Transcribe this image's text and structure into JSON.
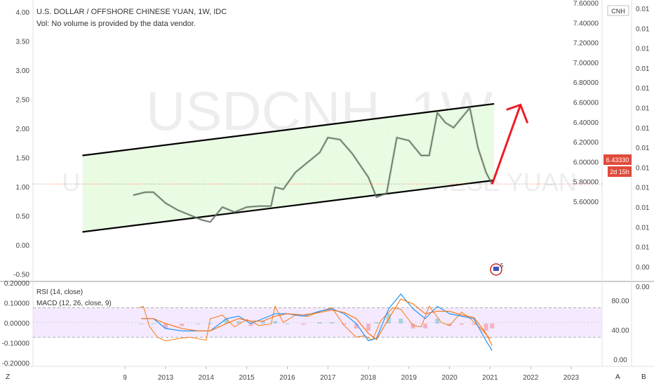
{
  "chart_data": {
    "type": "line",
    "title": "U.S. DOLLAR / OFFSHORE CHINESE YUAN, 1W, IDC",
    "volume_note": "Vol: No volume is provided by the data vendor.",
    "watermark_symbol": "USDCNH, 1W",
    "watermark_name": "U.S. DOLLAR / OFFSHORE CHINESE YUAN",
    "currency_badge": "CNH",
    "last_price": "6.43330",
    "countdown": "2d 15h",
    "event_badge": "5",
    "left_axis_ticks": [
      "4.00",
      "3.50",
      "3.00",
      "2.50",
      "2.00",
      "1.50",
      "1.00",
      "0.50",
      "0.00",
      "-0.50"
    ],
    "price_axis_ticks": [
      "7.60000",
      "7.40000",
      "7.20000",
      "7.00000",
      "6.80000",
      "6.60000",
      "6.40000",
      "6.20000",
      "6.00000",
      "5.80000",
      "5.60000"
    ],
    "far_right_ticks": [
      "0.01",
      "0.01",
      "0.01",
      "0.01",
      "0.01",
      "0.01",
      "0.01",
      "0.01",
      "0.01",
      "0.01",
      "0.01",
      "0.01",
      "0.01",
      "0.00",
      "0.00"
    ],
    "x_ticks": [
      "9",
      "2013",
      "2014",
      "2015",
      "2016",
      "2017",
      "2018",
      "2019",
      "2020",
      "2021",
      "2022",
      "2023"
    ],
    "price_series": {
      "x": [
        2012.2,
        2012.5,
        2012.7,
        2013.0,
        2013.3,
        2013.6,
        2013.9,
        2014.1,
        2014.4,
        2014.7,
        2015.0,
        2015.3,
        2015.6,
        2015.7,
        2015.9,
        2016.2,
        2016.5,
        2016.8,
        2017.0,
        2017.3,
        2017.6,
        2017.8,
        2018.0,
        2018.2,
        2018.45,
        2018.7,
        2019.0,
        2019.3,
        2019.5,
        2019.7,
        2019.9,
        2020.1,
        2020.3,
        2020.5,
        2020.7,
        2020.9,
        2021.05
      ],
      "y": [
        6.32,
        6.35,
        6.35,
        6.24,
        6.17,
        6.12,
        6.07,
        6.05,
        6.2,
        6.15,
        6.2,
        6.21,
        6.21,
        6.4,
        6.38,
        6.55,
        6.65,
        6.75,
        6.9,
        6.88,
        6.74,
        6.62,
        6.5,
        6.3,
        6.34,
        6.9,
        6.87,
        6.72,
        6.72,
        7.15,
        7.05,
        7.0,
        7.1,
        7.2,
        6.8,
        6.55,
        6.43
      ]
    },
    "channel_upper": {
      "x": [
        2010.95,
        2021.1
      ],
      "y": [
        6.72,
        7.24
      ]
    },
    "channel_lower": {
      "x": [
        2010.95,
        2021.1
      ],
      "y": [
        5.95,
        6.47
      ]
    },
    "projection_arrow": {
      "x": [
        2021.05,
        2021.75
      ],
      "y": [
        6.43,
        7.23
      ]
    },
    "indicators_label_1": "RSI (14, close)",
    "indicators_label_2": "MACD (12, 26, close, 9)",
    "macd_axis_ticks": [
      "0.20000",
      "0.10000",
      "0.00000",
      "-0.10000",
      "-0.20000"
    ],
    "rsi_axis_ticks": [
      "80.00",
      "40.00",
      "0.00"
    ],
    "rsi_series": {
      "x": [
        2012.35,
        2012.45,
        2012.6,
        2012.8,
        2013.0,
        2013.3,
        2013.6,
        2014.0,
        2014.1,
        2014.4,
        2014.7,
        2015.0,
        2015.3,
        2015.6,
        2015.7,
        2015.9,
        2016.2,
        2016.5,
        2016.8,
        2017.1,
        2017.4,
        2017.7,
        2017.9,
        2018.1,
        2018.3,
        2018.6,
        2018.8,
        2019.1,
        2019.3,
        2019.5,
        2019.8,
        2020.0,
        2020.3,
        2020.5,
        2020.8,
        2021.0
      ],
      "y": [
        70,
        72,
        45,
        30,
        25,
        28,
        30,
        26,
        55,
        60,
        44,
        54,
        46,
        48,
        72,
        50,
        60,
        58,
        65,
        70,
        46,
        30,
        32,
        26,
        52,
        70,
        68,
        46,
        44,
        72,
        50,
        46,
        64,
        56,
        40,
        28
      ]
    },
    "macd_series": {
      "x": [
        2012.4,
        2012.7,
        2013.0,
        2013.4,
        2013.8,
        2014.1,
        2014.5,
        2014.8,
        2015.1,
        2015.4,
        2015.7,
        2016.0,
        2016.4,
        2016.8,
        2017.1,
        2017.4,
        2017.7,
        2018.0,
        2018.2,
        2018.5,
        2018.8,
        2019.1,
        2019.4,
        2019.7,
        2020.0,
        2020.3,
        2020.6,
        2020.9,
        2021.05
      ],
      "y": [
        0.02,
        0.02,
        -0.02,
        -0.03,
        -0.03,
        -0.03,
        0.02,
        0.03,
        0.0,
        0.02,
        0.04,
        0.04,
        0.03,
        0.05,
        0.06,
        0.04,
        0.0,
        -0.07,
        -0.06,
        0.06,
        0.12,
        0.06,
        0.02,
        0.07,
        0.04,
        0.03,
        0.02,
        -0.07,
        -0.11
      ]
    },
    "signal_series": {
      "x": [
        2012.4,
        2012.7,
        2013.0,
        2013.4,
        2013.8,
        2014.1,
        2014.5,
        2014.8,
        2015.1,
        2015.4,
        2015.7,
        2016.0,
        2016.4,
        2016.8,
        2017.1,
        2017.4,
        2017.7,
        2018.0,
        2018.2,
        2018.5,
        2018.8,
        2019.1,
        2019.4,
        2019.7,
        2020.0,
        2020.3,
        2020.6,
        2020.9,
        2021.05
      ],
      "y": [
        0.02,
        0.02,
        0.0,
        -0.02,
        -0.03,
        -0.03,
        0.0,
        0.02,
        0.01,
        0.01,
        0.03,
        0.04,
        0.035,
        0.045,
        0.055,
        0.045,
        0.02,
        -0.04,
        -0.065,
        0.02,
        0.1,
        0.08,
        0.04,
        0.05,
        0.05,
        0.035,
        0.025,
        -0.04,
        -0.09
      ]
    },
    "bottom_axis_buttons": [
      "Z",
      "A",
      "B"
    ],
    "colors": {
      "candles": "#5d6b5d",
      "channel_fill": "#e8fbe0",
      "arrow": "#ee1c25",
      "rsi_band": "#f0e0ff",
      "rsi_line": "#f57c16",
      "macd_line": "#2196f3",
      "signal_line": "#ff6d00",
      "last_price_bg": "#e04b3a"
    }
  }
}
